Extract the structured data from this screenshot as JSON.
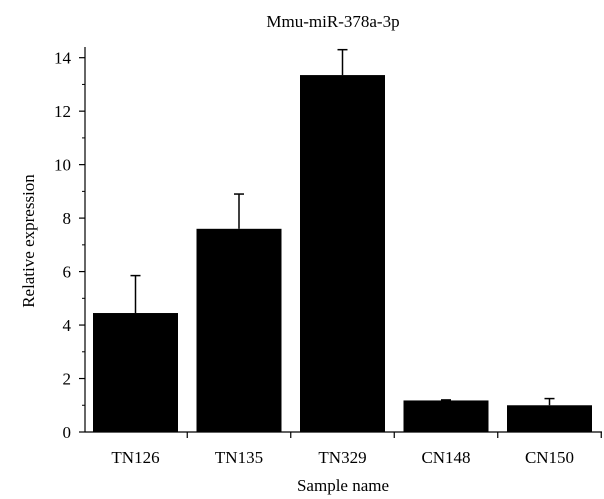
{
  "chart_data": {
    "type": "bar",
    "title": "Mmu-miR-378a-3p",
    "xlabel": "Sample name",
    "ylabel": "Relative expression",
    "categories": [
      "TN126",
      "TN135",
      "TN329",
      "CN148",
      "CN150"
    ],
    "values": [
      4.45,
      7.6,
      13.35,
      1.18,
      1.0
    ],
    "error_upper": [
      1.4,
      1.3,
      0.95,
      0.02,
      0.25
    ],
    "ylim": [
      0,
      14.4
    ],
    "yticks": [
      0,
      2,
      4,
      6,
      8,
      10,
      12,
      14
    ],
    "ytick_labels": [
      "0",
      "2",
      "4",
      "6",
      "8",
      "10",
      "12",
      "14"
    ],
    "grid": false,
    "legend": "none",
    "bar_color": "#000000"
  }
}
